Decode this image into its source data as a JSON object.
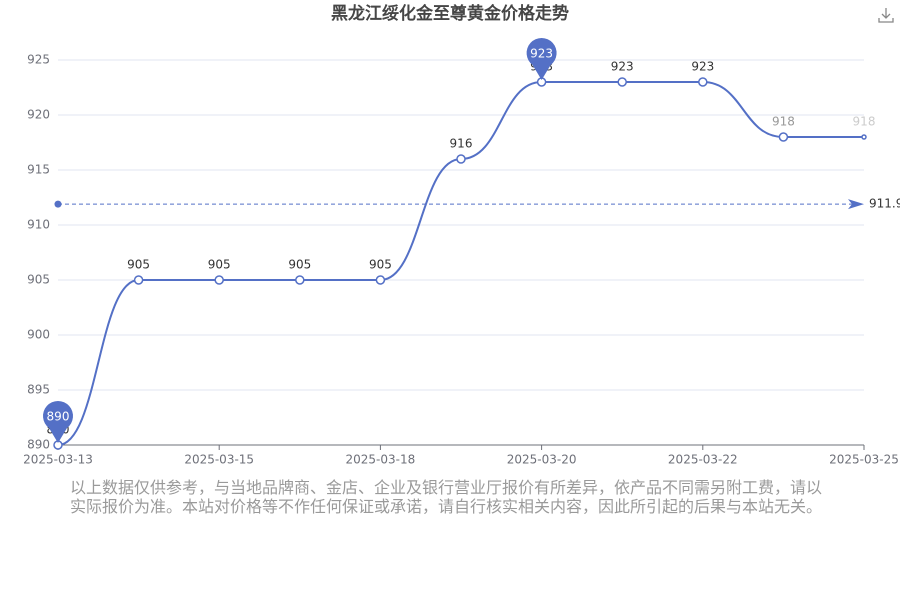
{
  "chart_data": {
    "type": "line",
    "title": "黑龙江绥化金至尊黄金价格走势",
    "categories": [
      "2025-03-13",
      null,
      "2025-03-15",
      null,
      "2025-03-18",
      null,
      "2025-03-20",
      null,
      "2025-03-22",
      null,
      "2025-03-25"
    ],
    "values": [
      890,
      905,
      905,
      905,
      905,
      916,
      923,
      923,
      923,
      918,
      918
    ],
    "color": "#5470c6",
    "average": 911.9,
    "ylim": [
      890,
      925
    ],
    "yticks": [
      890,
      895,
      900,
      905,
      910,
      915,
      920,
      925
    ],
    "grid": true,
    "note": "以上数据仅供参考，与当地品牌商、金店、企业及银行营业厅报价有所差异，依产品不同需另附工费，请以实际报价为准。本站对价格等不作任何保证或承诺，请自行核实相关内容，因此所引起的后果与本站无关。"
  }
}
